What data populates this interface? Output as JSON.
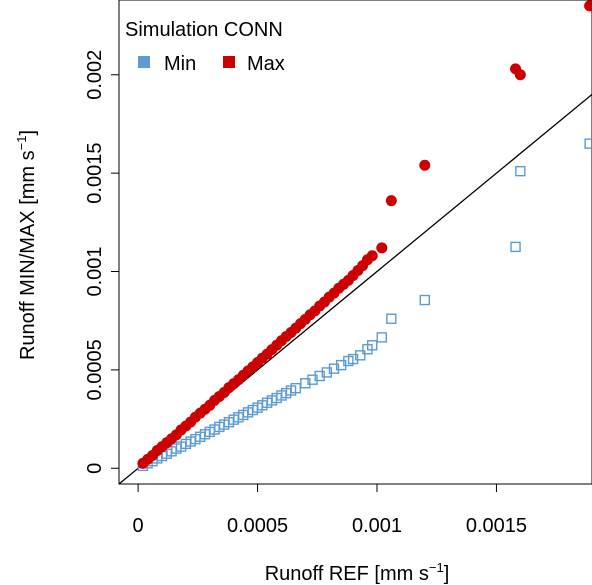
{
  "chart_data": {
    "type": "scatter",
    "title": "Simulation CONN",
    "xlabel": "Runoff REF [mm s",
    "xlabel_sup": "−1",
    "xlabel_end": "]",
    "ylabel": "Runoff MIN/MAX [mm s",
    "ylabel_sup": "−1",
    "ylabel_end": "]",
    "xlim": [
      -8e-05,
      0.0019
    ],
    "ylim": [
      -8e-05,
      0.00238
    ],
    "x_ticks": [
      0,
      0.0005,
      0.001,
      0.0015
    ],
    "x_tick_labels": [
      "0",
      "0.0005",
      "0.001",
      "0.0015"
    ],
    "y_ticks": [
      0,
      0.0005,
      0.001,
      0.0015,
      0.002
    ],
    "y_tick_labels": [
      "0",
      "0.0005",
      "0.001",
      "0.0015",
      "0.002"
    ],
    "grid": false,
    "legend_position": "top-left",
    "reference_line": "1:1",
    "colors": {
      "min": "#5a9bd4",
      "max": "#cc0000",
      "line": "#000000"
    },
    "series": [
      {
        "name": "Min",
        "marker": "open-square",
        "points": [
          [
            2e-05,
            1.2e-05
          ],
          [
            4e-05,
            2.5e-05
          ],
          [
            6e-05,
            3.6e-05
          ],
          [
            8e-05,
            5e-05
          ],
          [
            0.0001,
            6.2e-05
          ],
          [
            0.00012,
            7.4e-05
          ],
          [
            0.00014,
            8.6e-05
          ],
          [
            0.00016,
            0.0001
          ],
          [
            0.00018,
            0.00011
          ],
          [
            0.0002,
            0.000124
          ],
          [
            0.00022,
            0.000136
          ],
          [
            0.00024,
            0.000148
          ],
          [
            0.00026,
            0.00016
          ],
          [
            0.00028,
            0.000173
          ],
          [
            0.0003,
            0.000185
          ],
          [
            0.00032,
            0.000197
          ],
          [
            0.00034,
            0.00021
          ],
          [
            0.00036,
            0.000222
          ],
          [
            0.00038,
            0.000234
          ],
          [
            0.0004,
            0.000247
          ],
          [
            0.00042,
            0.000259
          ],
          [
            0.00044,
            0.000271
          ],
          [
            0.00046,
            0.000284
          ],
          [
            0.00048,
            0.000296
          ],
          [
            0.0005,
            0.000308
          ],
          [
            0.00052,
            0.00032
          ],
          [
            0.00054,
            0.000333
          ],
          [
            0.00056,
            0.000345
          ],
          [
            0.00058,
            0.000357
          ],
          [
            0.0006,
            0.00037
          ],
          [
            0.00062,
            0.000382
          ],
          [
            0.00064,
            0.000395
          ],
          [
            0.00066,
            0.000407
          ],
          [
            0.0007,
            0.000432
          ],
          [
            0.00073,
            0.00045
          ],
          [
            0.00076,
            0.000469
          ],
          [
            0.00079,
            0.000487
          ],
          [
            0.00082,
            0.000506
          ],
          [
            0.00085,
            0.000524
          ],
          [
            0.00088,
            0.000545
          ],
          [
            0.0009,
            0.000555
          ],
          [
            0.00093,
            0.000574
          ],
          [
            0.00096,
            0.000605
          ],
          [
            0.00098,
            0.000625
          ],
          [
            0.00102,
            0.000665
          ],
          [
            0.00106,
            0.00076
          ],
          [
            0.0012,
            0.000855
          ],
          [
            0.00158,
            0.001125
          ],
          [
            0.0016,
            0.00151
          ],
          [
            0.00189,
            0.00165
          ]
        ]
      },
      {
        "name": "Max",
        "marker": "filled-circle",
        "points": [
          [
            2e-05,
            2.5e-05
          ],
          [
            4e-05,
            4.5e-05
          ],
          [
            6e-05,
            6.5e-05
          ],
          [
            8e-05,
            9e-05
          ],
          [
            0.0001,
            0.00011
          ],
          [
            0.00012,
            0.00013
          ],
          [
            0.00014,
            0.00015
          ],
          [
            0.00016,
            0.00017
          ],
          [
            0.00018,
            0.000195
          ],
          [
            0.0002,
            0.000215
          ],
          [
            0.00022,
            0.000235
          ],
          [
            0.00024,
            0.00026
          ],
          [
            0.00026,
            0.00028
          ],
          [
            0.00028,
            0.0003
          ],
          [
            0.0003,
            0.00032
          ],
          [
            0.00032,
            0.000345
          ],
          [
            0.00034,
            0.000365
          ],
          [
            0.00036,
            0.000385
          ],
          [
            0.00038,
            0.00041
          ],
          [
            0.0004,
            0.00043
          ],
          [
            0.00042,
            0.00045
          ],
          [
            0.00044,
            0.000472
          ],
          [
            0.00046,
            0.000495
          ],
          [
            0.00048,
            0.000515
          ],
          [
            0.0005,
            0.000538
          ],
          [
            0.00052,
            0.00056
          ],
          [
            0.00054,
            0.00058
          ],
          [
            0.00056,
            0.000603
          ],
          [
            0.00058,
            0.000625
          ],
          [
            0.0006,
            0.000648
          ],
          [
            0.00062,
            0.00067
          ],
          [
            0.00064,
            0.00069
          ],
          [
            0.00066,
            0.000712
          ],
          [
            0.00068,
            0.000735
          ],
          [
            0.0007,
            0.000757
          ],
          [
            0.00072,
            0.00078
          ],
          [
            0.00074,
            0.0008
          ],
          [
            0.00076,
            0.000825
          ],
          [
            0.00078,
            0.000845
          ],
          [
            0.0008,
            0.00087
          ],
          [
            0.00082,
            0.00089
          ],
          [
            0.00084,
            0.000915
          ],
          [
            0.00086,
            0.000935
          ],
          [
            0.00088,
            0.000955
          ],
          [
            0.0009,
            0.00098
          ],
          [
            0.00092,
            0.001005
          ],
          [
            0.00094,
            0.00103
          ],
          [
            0.00096,
            0.00106
          ],
          [
            0.00098,
            0.00108
          ],
          [
            0.00102,
            0.00112
          ],
          [
            0.00106,
            0.00136
          ],
          [
            0.0012,
            0.00154
          ],
          [
            0.00158,
            0.00203
          ],
          [
            0.0016,
            0.002
          ],
          [
            0.00189,
            0.00235
          ]
        ]
      }
    ]
  }
}
